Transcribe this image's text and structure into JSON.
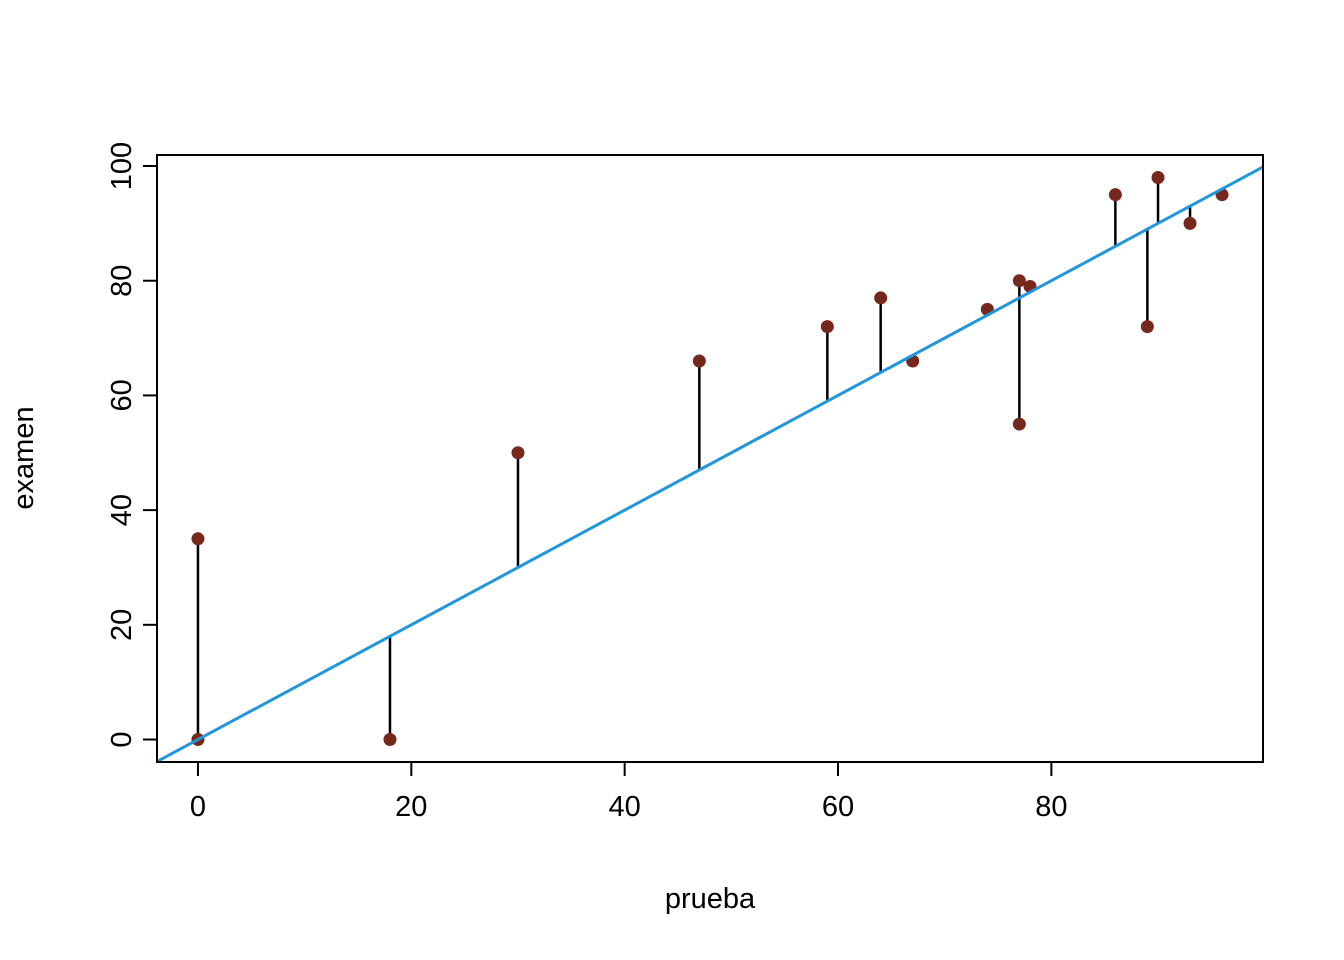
{
  "chart_data": {
    "type": "scatter",
    "title": "",
    "xlabel": "prueba",
    "ylabel": "examen",
    "x_ticks": [
      0,
      20,
      40,
      60,
      80
    ],
    "y_ticks": [
      0,
      20,
      40,
      60,
      80,
      100
    ],
    "xlim": [
      -3.84,
      99.84
    ],
    "ylim": [
      -3.92,
      101.92
    ],
    "grid": false,
    "legend": "none",
    "points": [
      {
        "prueba": 0,
        "examen": 0
      },
      {
        "prueba": 0,
        "examen": 35
      },
      {
        "prueba": 18,
        "examen": 0
      },
      {
        "prueba": 30,
        "examen": 50
      },
      {
        "prueba": 47,
        "examen": 66
      },
      {
        "prueba": 59,
        "examen": 72
      },
      {
        "prueba": 64,
        "examen": 77
      },
      {
        "prueba": 67,
        "examen": 66
      },
      {
        "prueba": 74,
        "examen": 75
      },
      {
        "prueba": 77,
        "examen": 55
      },
      {
        "prueba": 77,
        "examen": 80
      },
      {
        "prueba": 78,
        "examen": 79
      },
      {
        "prueba": 86,
        "examen": 95
      },
      {
        "prueba": 89,
        "examen": 72
      },
      {
        "prueba": 90,
        "examen": 98
      },
      {
        "prueba": 93,
        "examen": 90
      },
      {
        "prueba": 96,
        "examen": 95
      }
    ],
    "reference_line": {
      "type": "identity",
      "intercept": 0,
      "slope": 1
    },
    "residual_segments_to_line": true,
    "colors": {
      "point": "#76281c",
      "segment": "#000000",
      "reference_line": "#2196dd",
      "axis": "#000000",
      "background": "#ffffff"
    }
  }
}
